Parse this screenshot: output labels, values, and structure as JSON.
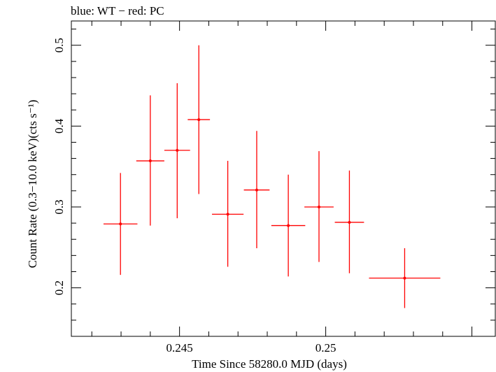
{
  "chart_data": {
    "type": "scatter",
    "title": "blue: WT − red: PC",
    "xlabel": "Time Since 58280.0 MJD (days)",
    "ylabel": "Count Rate (0.3−10.0 keV)(cts s⁻¹)",
    "xlim": [
      0.2413,
      0.2558
    ],
    "ylim": [
      0.14,
      0.53
    ],
    "x_ticks_major": [
      0.245,
      0.25
    ],
    "x_tick_labels": [
      "0.245",
      "0.25"
    ],
    "y_ticks_major": [
      0.2,
      0.3,
      0.4,
      0.5
    ],
    "y_tick_labels": [
      "0.2",
      "0.3",
      "0.4",
      "0.5"
    ],
    "grid": false,
    "series": [
      {
        "color": "#ff0000",
        "points": [
          {
            "x": 0.24298,
            "xerr": 0.00058,
            "y": 0.279,
            "yerr_lo": 0.063,
            "yerr_hi": 0.063
          },
          {
            "x": 0.244,
            "xerr": 0.00048,
            "y": 0.357,
            "yerr_lo": 0.08,
            "yerr_hi": 0.081
          },
          {
            "x": 0.24492,
            "xerr": 0.00044,
            "y": 0.37,
            "yerr_lo": 0.084,
            "yerr_hi": 0.083
          },
          {
            "x": 0.24566,
            "xerr": 0.00038,
            "y": 0.408,
            "yerr_lo": 0.092,
            "yerr_hi": 0.092
          },
          {
            "x": 0.24665,
            "xerr": 0.00054,
            "y": 0.291,
            "yerr_lo": 0.065,
            "yerr_hi": 0.066
          },
          {
            "x": 0.24764,
            "xerr": 0.00044,
            "y": 0.321,
            "yerr_lo": 0.072,
            "yerr_hi": 0.073
          },
          {
            "x": 0.24872,
            "xerr": 0.00058,
            "y": 0.277,
            "yerr_lo": 0.063,
            "yerr_hi": 0.063
          },
          {
            "x": 0.24977,
            "xerr": 0.0005,
            "y": 0.3,
            "yerr_lo": 0.068,
            "yerr_hi": 0.069
          },
          {
            "x": 0.25081,
            "xerr": 0.0005,
            "y": 0.281,
            "yerr_lo": 0.063,
            "yerr_hi": 0.064
          },
          {
            "x": 0.2527,
            "xerr": 0.00122,
            "y": 0.212,
            "yerr_lo": 0.037,
            "yerr_hi": 0.037
          }
        ]
      }
    ]
  }
}
